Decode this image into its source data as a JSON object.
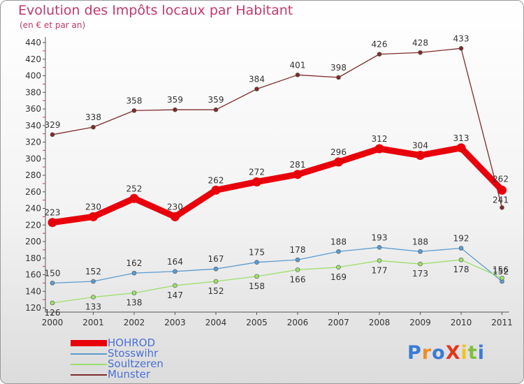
{
  "header": {
    "title": "Evolution des Impôts locaux par Habitant",
    "subtitle": "(en € et par an)"
  },
  "colors": {
    "title": "#c0396b",
    "legend_text": "#4a6fd6",
    "hohrod": "#e8000b",
    "stosswihr": "#5b9bcf",
    "soultzeren": "#9ddf6a",
    "munster": "#7e2b2b"
  },
  "logo": {
    "text": "ProXiti"
  },
  "chart_data": {
    "type": "line",
    "title": "Evolution des Impôts locaux par Habitant",
    "subtitle": "(en € et par an)",
    "xlabel": "",
    "ylabel": "",
    "categories": [
      "2000",
      "2001",
      "2002",
      "2003",
      "2004",
      "2005",
      "2006",
      "2007",
      "2008",
      "2009",
      "2010",
      "2011"
    ],
    "yticks": [
      120,
      140,
      160,
      180,
      200,
      220,
      240,
      260,
      280,
      300,
      320,
      340,
      360,
      380,
      400,
      420,
      440
    ],
    "ylim": [
      120,
      445
    ],
    "grid": false,
    "legend": "bottom-left",
    "series": [
      {
        "name": "HOHROD",
        "color": "#e8000b",
        "values": [
          223,
          230,
          252,
          230,
          262,
          272,
          281,
          296,
          312,
          304,
          313,
          262
        ]
      },
      {
        "name": "Stosswihr",
        "color": "#5b9bcf",
        "values": [
          150,
          152,
          162,
          164,
          167,
          175,
          178,
          188,
          193,
          188,
          192,
          152
        ]
      },
      {
        "name": "Soultzeren",
        "color": "#9ddf6a",
        "values": [
          126,
          133,
          138,
          147,
          152,
          158,
          166,
          169,
          177,
          173,
          178,
          156
        ]
      },
      {
        "name": "Munster",
        "color": "#7e2b2b",
        "values": [
          329,
          338,
          358,
          359,
          359,
          384,
          401,
          398,
          426,
          428,
          433,
          241
        ]
      }
    ]
  }
}
